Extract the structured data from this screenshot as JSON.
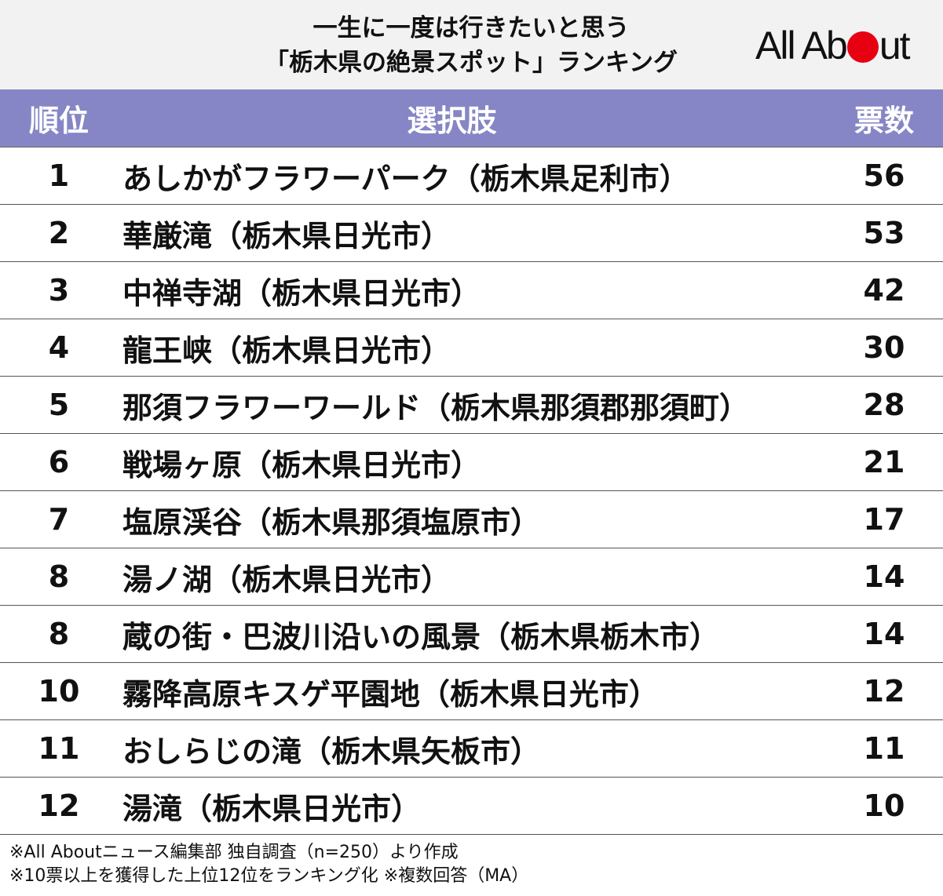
{
  "header": {
    "title_line1": "一生に一度は行きたいと思う",
    "title_line2": "「栃木県の絶景スポット」ランキング",
    "logo_left": "All Ab",
    "logo_right": "ut",
    "logo_dot_color": "#e60012"
  },
  "table": {
    "header_color": "#8686c6",
    "columns": [
      "順位",
      "選択肢",
      "票数"
    ]
  },
  "chart_data": {
    "type": "table",
    "title": "一生に一度は行きたいと思う「栃木県の絶景スポット」ランキング",
    "columns": [
      "順位",
      "選択肢",
      "票数"
    ],
    "rows": [
      {
        "rank": "1",
        "name": "あしかがフラワーパーク（栃木県足利市）",
        "votes": 56
      },
      {
        "rank": "2",
        "name": "華厳滝（栃木県日光市）",
        "votes": 53
      },
      {
        "rank": "3",
        "name": "中禅寺湖（栃木県日光市）",
        "votes": 42
      },
      {
        "rank": "4",
        "name": "龍王峡（栃木県日光市）",
        "votes": 30
      },
      {
        "rank": "5",
        "name": "那須フラワーワールド（栃木県那須郡那須町）",
        "votes": 28
      },
      {
        "rank": "6",
        "name": "戦場ヶ原（栃木県日光市）",
        "votes": 21
      },
      {
        "rank": "7",
        "name": "塩原渓谷（栃木県那須塩原市）",
        "votes": 17
      },
      {
        "rank": "8",
        "name": "湯ノ湖（栃木県日光市）",
        "votes": 14
      },
      {
        "rank": "8",
        "name": "蔵の街・巴波川沿いの風景（栃木県栃木市）",
        "votes": 14
      },
      {
        "rank": "10",
        "name": "霧降高原キスゲ平園地（栃木県日光市）",
        "votes": 12
      },
      {
        "rank": "11",
        "name": "おしらじの滝（栃木県矢板市）",
        "votes": 11
      },
      {
        "rank": "12",
        "name": "湯滝（栃木県日光市）",
        "votes": 10
      }
    ]
  },
  "notes": {
    "line1": "※All Aboutニュース編集部 独自調査（n=250）より作成",
    "line2": "※10票以上を獲得した上位12位をランキング化 ※複数回答（MA）"
  }
}
